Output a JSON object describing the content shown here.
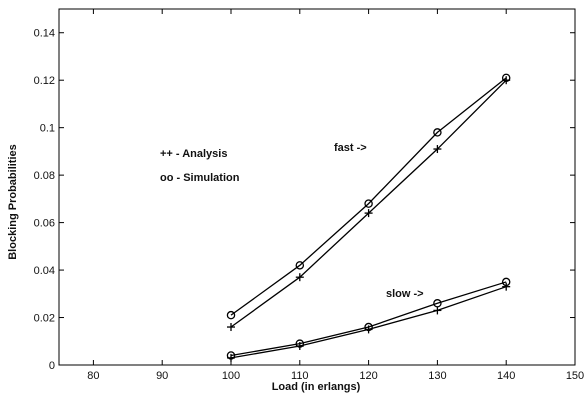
{
  "chart_data": {
    "type": "line",
    "title": "",
    "xlabel": "Load (in erlangs)",
    "ylabel": "Blocking Probabilities",
    "xlim": [
      75,
      150
    ],
    "ylim": [
      0,
      0.15
    ],
    "xticks": [
      80,
      90,
      100,
      110,
      120,
      130,
      140,
      150
    ],
    "yticks": [
      0,
      0.02,
      0.04,
      0.06,
      0.08,
      0.1,
      0.12,
      0.14
    ],
    "grid": false,
    "legend": {
      "placement": "upper-left",
      "entries": [
        {
          "marker": "plus",
          "text": "++ - Analysis"
        },
        {
          "marker": "circle",
          "text": "oo - Simulation"
        }
      ]
    },
    "annotations": [
      {
        "text": "fast ->",
        "target": "fast"
      },
      {
        "text": "slow ->",
        "target": "slow"
      }
    ],
    "x": [
      100,
      110,
      120,
      130,
      140
    ],
    "series": [
      {
        "group": "fast",
        "marker": "plus",
        "values": [
          0.016,
          0.037,
          0.064,
          0.091,
          0.12
        ]
      },
      {
        "group": "fast",
        "marker": "circle",
        "values": [
          0.021,
          0.042,
          0.068,
          0.098,
          0.121
        ]
      },
      {
        "group": "slow",
        "marker": "plus",
        "values": [
          0.003,
          0.008,
          0.015,
          0.023,
          0.033
        ]
      },
      {
        "group": "slow",
        "marker": "circle",
        "values": [
          0.004,
          0.009,
          0.016,
          0.026,
          0.035
        ]
      }
    ]
  }
}
